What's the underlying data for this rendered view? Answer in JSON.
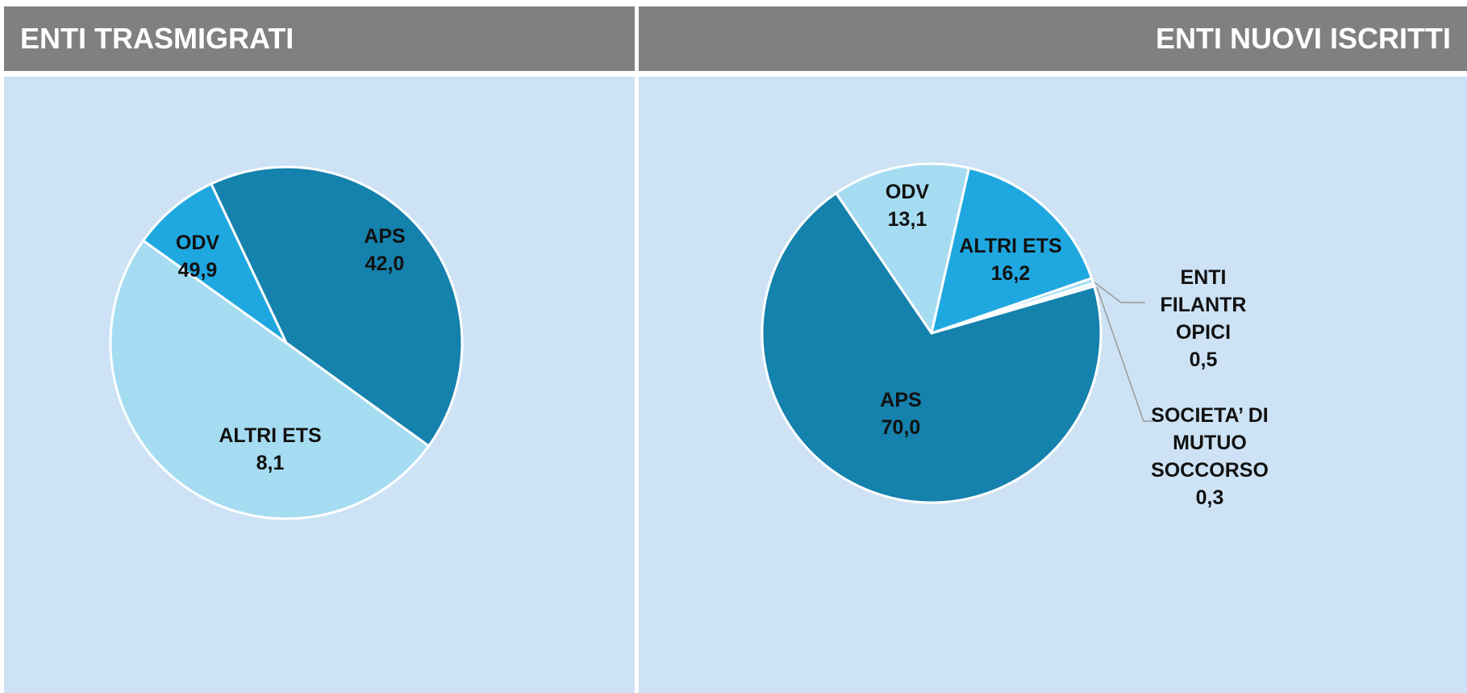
{
  "chart_data": [
    {
      "type": "pie",
      "title": "ENTI TRASMIGRATI",
      "categories": [
        "APS",
        "ODV",
        "ALTRI ETS"
      ],
      "values": [
        42.0,
        49.9,
        8.1
      ],
      "value_labels": [
        "42,0",
        "49,9",
        "8,1"
      ],
      "colors": [
        "#1581ad",
        "#a6dcf2",
        "#1fa8e0"
      ]
    },
    {
      "type": "pie",
      "title": "ENTI NUOVI ISCRITTI",
      "categories": [
        "ODV",
        "ALTRI ETS",
        "ENTI FILANTROPICI",
        "SOCIETA’ DI MUTUO SOCCORSO",
        "APS"
      ],
      "values": [
        13.1,
        16.2,
        0.5,
        0.3,
        70.0
      ],
      "value_labels": [
        "13,1",
        "16,2",
        "0,5",
        "0,3",
        "70,0"
      ],
      "colors": [
        "#a6dcf2",
        "#1fa8e0",
        "#a6dcf2",
        "#cde4f5",
        "#1581ad"
      ]
    }
  ]
}
